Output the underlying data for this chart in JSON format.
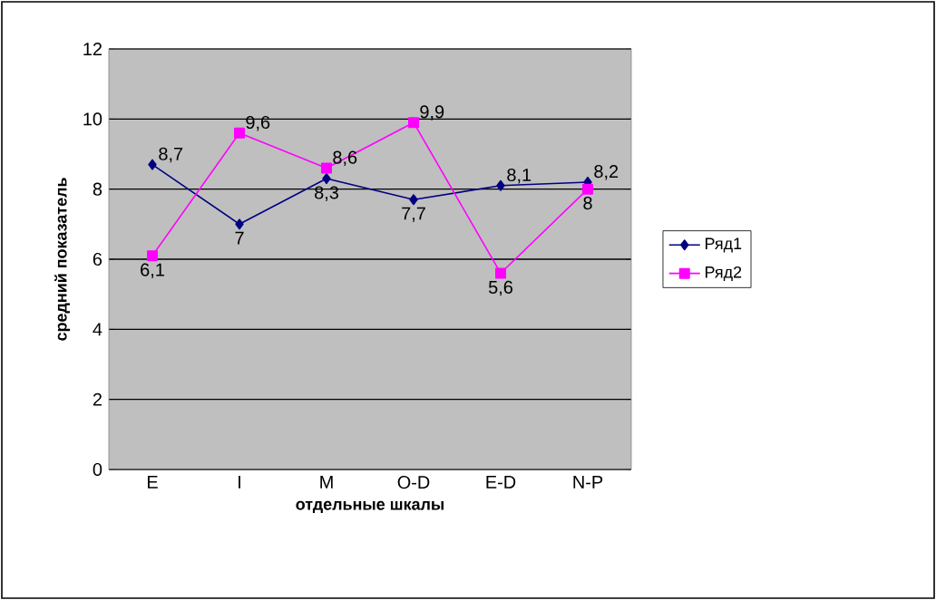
{
  "chart_data": {
    "type": "line",
    "xlabel": "отдельные шкалы",
    "ylabel": "средний показатель",
    "categories": [
      "E",
      "I",
      "M",
      "O-D",
      "E-D",
      "N-P"
    ],
    "series": [
      {
        "name": "Ряд1",
        "color": "#000080",
        "marker": "diamond",
        "values": [
          8.7,
          7,
          8.3,
          7.7,
          8.1,
          8.2
        ],
        "value_labels": [
          "8,7",
          "7",
          "8,3",
          "7,7",
          "8,1",
          "8,2"
        ]
      },
      {
        "name": "Ряд2",
        "color": "#ff00ff",
        "marker": "square",
        "values": [
          6.1,
          9.6,
          8.6,
          9.9,
          5.6,
          8
        ],
        "value_labels": [
          "6,1",
          "9,6",
          "8,6",
          "9,9",
          "5,6",
          "8"
        ]
      }
    ],
    "ylim": [
      0,
      12
    ],
    "yticks": [
      0,
      2,
      4,
      6,
      8,
      10,
      12
    ],
    "grid": "y",
    "legend": "right"
  }
}
